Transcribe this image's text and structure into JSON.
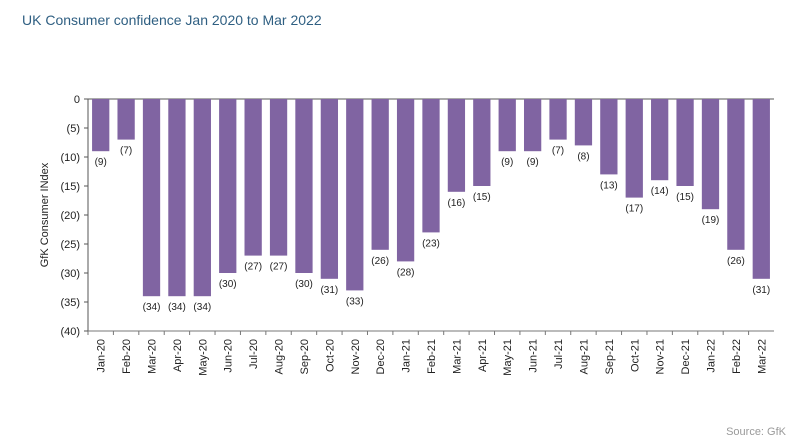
{
  "chart_data": {
    "type": "bar",
    "title": "UK Consumer confidence Jan 2020 to Mar 2022",
    "ylabel": "GfK Consumer INdex",
    "xlabel": "",
    "ylim": [
      -40,
      0
    ],
    "yticks": [
      "0",
      "(5)",
      "(10)",
      "(15)",
      "(20)",
      "(25)",
      "(30)",
      "(35)",
      "(40)"
    ],
    "categories": [
      "Jan-20",
      "Feb-20",
      "Mar-20",
      "Apr-20",
      "May-20",
      "Jun-20",
      "Jul-20",
      "Aug-20",
      "Sep-20",
      "Oct-20",
      "Nov-20",
      "Dec-20",
      "Jan-21",
      "Feb-21",
      "Mar-21",
      "Apr-21",
      "May-21",
      "Jun-21",
      "Jul-21",
      "Aug-21",
      "Sep-21",
      "Oct-21",
      "Nov-21",
      "Dec-21",
      "Jan-22",
      "Feb-22",
      "Mar-22"
    ],
    "values": [
      -9,
      -7,
      -34,
      -34,
      -34,
      -30,
      -27,
      -27,
      -30,
      -31,
      -33,
      -26,
      -28,
      -23,
      -16,
      -15,
      -9,
      -9,
      -7,
      -8,
      -13,
      -17,
      -14,
      -15,
      -19,
      -26,
      -31
    ],
    "data_labels": [
      "(9)",
      "(7)",
      "(34)",
      "(34)",
      "(34)",
      "(30)",
      "(27)",
      "(27)",
      "(30)",
      "(31)",
      "(33)",
      "(26)",
      "(28)",
      "(23)",
      "(16)",
      "(15)",
      "(9)",
      "(9)",
      "(7)",
      "(8)",
      "(13)",
      "(17)",
      "(14)",
      "(15)",
      "(19)",
      "(26)",
      "(31)"
    ],
    "bar_color": "#8064a2",
    "grid": false,
    "legend": "none"
  },
  "source": "Source: GfK"
}
